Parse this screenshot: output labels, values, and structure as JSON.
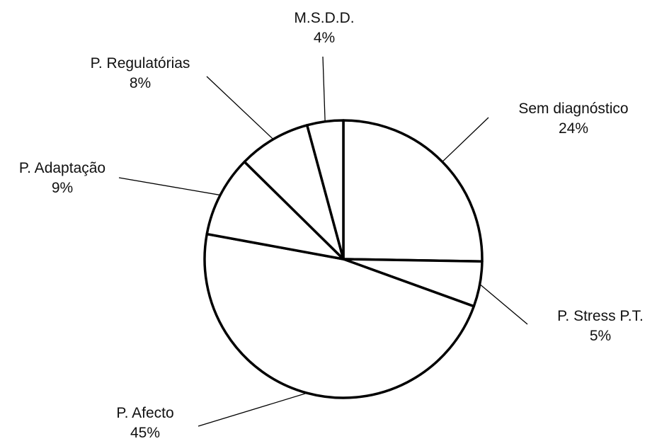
{
  "chart_data": {
    "type": "pie",
    "title": "",
    "start_angle_deg": 0,
    "direction": "clockwise",
    "slices": [
      {
        "label": "Sem diagnóstico",
        "value": 24,
        "value_label": "24%"
      },
      {
        "label": "P. Stress P.T.",
        "value": 5,
        "value_label": "5%"
      },
      {
        "label": "P. Afecto",
        "value": 45,
        "value_label": "45%"
      },
      {
        "label": "P. Adaptação",
        "value": 9,
        "value_label": "9%"
      },
      {
        "label": "P. Regulatórias",
        "value": 8,
        "value_label": "8%"
      },
      {
        "label": "M.S.D.D.",
        "value": 4,
        "value_label": "4%"
      }
    ],
    "colors": {
      "fill": "#ffffff",
      "stroke": "#000000"
    },
    "legend": "none"
  }
}
